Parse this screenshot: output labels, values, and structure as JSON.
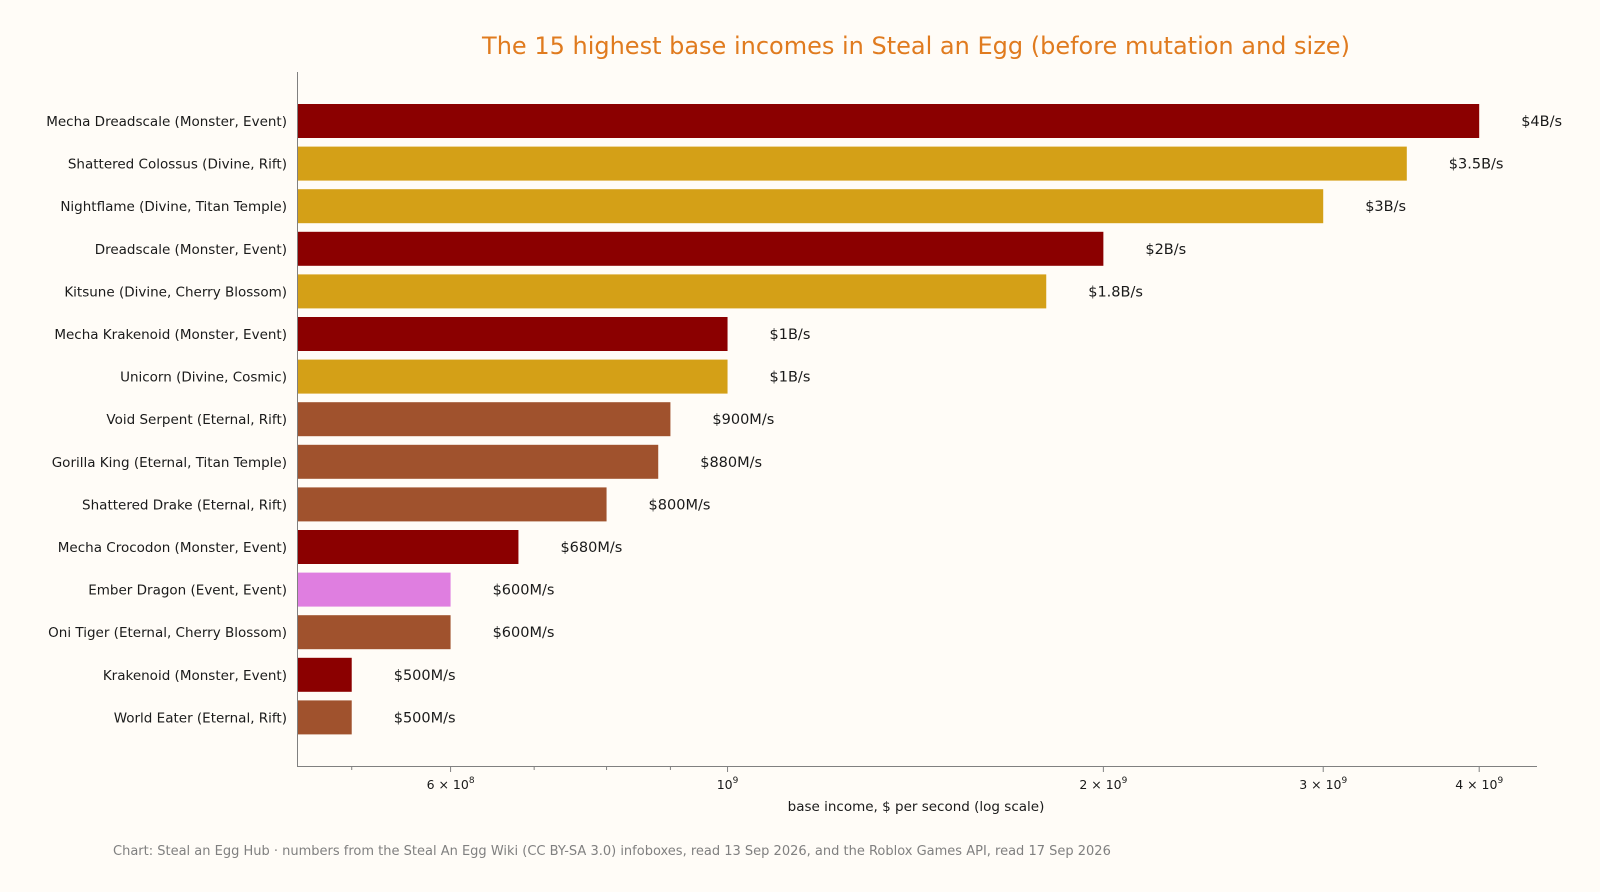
{
  "chart_data": {
    "type": "bar",
    "orientation": "horizontal",
    "title": "The 15 highest base incomes in Steal an Egg (before mutation and size)",
    "xlabel": "base income, $ per second (log scale)",
    "ylabel": "",
    "x_scale": "log",
    "xlim": [
      452000000,
      4450000000
    ],
    "grid": false,
    "legend": "none",
    "x_ticks": [
      {
        "value": 600000000,
        "mantissa": "6",
        "base": "10",
        "exp": "8"
      },
      {
        "value": 1000000000,
        "mantissa": "",
        "base": "10",
        "exp": "9"
      },
      {
        "value": 2000000000,
        "mantissa": "2",
        "base": "10",
        "exp": "9"
      },
      {
        "value": 3000000000,
        "mantissa": "3",
        "base": "10",
        "exp": "9"
      },
      {
        "value": 4000000000,
        "mantissa": "4",
        "base": "10",
        "exp": "9"
      }
    ],
    "categories": [
      "Mecha Dreadscale  (Monster, Event)",
      "Shattered Colossus  (Divine, Rift)",
      "Nightflame  (Divine, Titan Temple)",
      "Dreadscale  (Monster, Event)",
      "Kitsune  (Divine, Cherry Blossom)",
      "Mecha Krakenoid  (Monster, Event)",
      "Unicorn  (Divine, Cosmic)",
      "Void Serpent  (Eternal, Rift)",
      "Gorilla King  (Eternal, Titan Temple)",
      "Shattered Drake  (Eternal, Rift)",
      "Mecha Crocodon  (Monster, Event)",
      "Ember Dragon  (Event, Event)",
      "Oni Tiger  (Eternal, Cherry Blossom)",
      "Krakenoid  (Monster, Event)",
      "World Eater  (Eternal, Rift)"
    ],
    "values": [
      4000000000,
      3500000000,
      3000000000,
      2000000000,
      1800000000,
      1000000000,
      1000000000,
      900000000,
      880000000,
      800000000,
      680000000,
      600000000,
      600000000,
      500000000,
      500000000
    ],
    "data_labels": [
      "$4B/s",
      "$3.5B/s",
      "$3B/s",
      "$2B/s",
      "$1.8B/s",
      "$1B/s",
      "$1B/s",
      "$900M/s",
      "$880M/s",
      "$800M/s",
      "$680M/s",
      "$600M/s",
      "$600M/s",
      "$500M/s",
      "$500M/s"
    ],
    "colors": [
      "#8b0000",
      "#d4a017",
      "#d4a017",
      "#8b0000",
      "#d4a017",
      "#8b0000",
      "#d4a017",
      "#a0522d",
      "#a0522d",
      "#a0522d",
      "#8b0000",
      "#df7ee0",
      "#a0522d",
      "#8b0000",
      "#a0522d"
    ],
    "credit": "Chart: Steal an Egg Hub · numbers from the Steal An Egg Wiki (CC BY-SA 3.0) infoboxes, read 13 Sep 2026, and the Roblox Games API, read 17 Sep 2026"
  }
}
